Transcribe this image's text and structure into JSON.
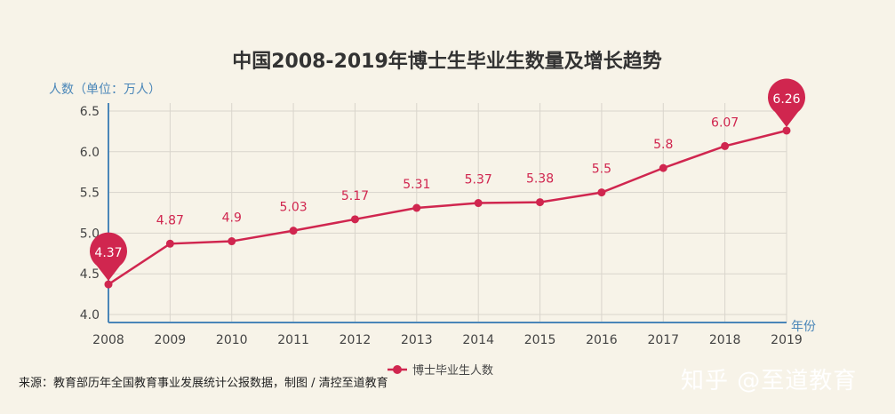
{
  "chart_data": {
    "type": "line",
    "title": "中国2008-2019年博士生毕业生数量及增长趋势",
    "ylabel": "人数（单位：万人）",
    "xlabel": "年份",
    "categories": [
      "2008",
      "2009",
      "2010",
      "2011",
      "2012",
      "2013",
      "2014",
      "2015",
      "2016",
      "2017",
      "2018",
      "2019"
    ],
    "series": [
      {
        "name": "博士毕业生人数",
        "values": [
          4.37,
          4.87,
          4.9,
          5.03,
          5.17,
          5.31,
          5.37,
          5.38,
          5.5,
          5.8,
          6.07,
          6.26
        ]
      }
    ],
    "value_labels": [
      "4.37",
      "4.87",
      "4.9",
      "5.03",
      "5.17",
      "5.31",
      "5.37",
      "5.38",
      "5.5",
      "5.8",
      "6.07",
      "6.26"
    ],
    "ylim": [
      4.0,
      6.5
    ],
    "yticks": [
      "4.0",
      "4.5",
      "5.0",
      "5.5",
      "6.0",
      "6.5"
    ],
    "highlighted_points": [
      "min",
      "max"
    ],
    "grid": true,
    "legend": "bottom-center",
    "colors": {
      "line": "#d0264f",
      "axis": "#4a86b8",
      "grid": "#d9d5cc",
      "background": "#f7f3e8"
    }
  },
  "footer": {
    "source": "来源：教育部历年全国教育事业发展统计公报数据，制图 / 清控至道教育",
    "watermark": "知乎 @至道教育"
  }
}
